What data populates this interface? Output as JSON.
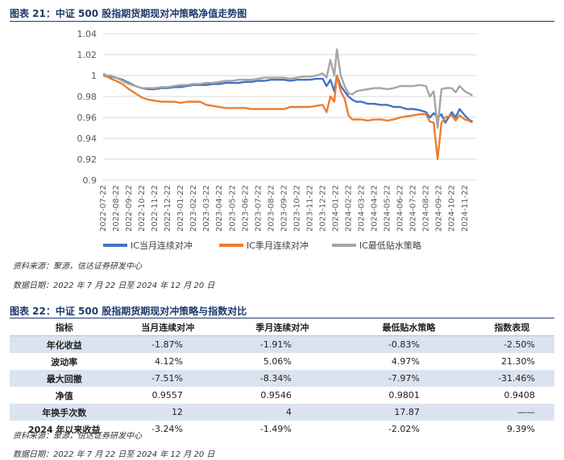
{
  "figure1": {
    "title": "图表 21：中证 500 股指期货期现对冲策略净值走势图",
    "source": "资料来源：聚源，信达证券研发中心",
    "date_range": "数据日期：2022 年 7 月 22 日至 2024 年 12 月 20 日"
  },
  "figure2": {
    "title": "图表 22：中证 500 股指期货期现对冲策略与指数对比",
    "source": "资料来源：聚源，信达证券研发中心",
    "date_range": "数据日期：2022 年 7 月 22 日至 2024 年 12 月 20 日"
  },
  "chart_data": {
    "type": "line",
    "title": "",
    "xlabel": "",
    "ylabel": "",
    "ylim": [
      0.9,
      1.04
    ],
    "yticks": [
      "0.9",
      "0.92",
      "0.94",
      "0.96",
      "0.98",
      "1",
      "1.02",
      "1.04"
    ],
    "ytick_values": [
      0.9,
      0.92,
      0.94,
      0.96,
      0.98,
      1.0,
      1.02,
      1.04
    ],
    "x_categories": [
      "2022-07-22",
      "2022-08-22",
      "2022-09-22",
      "2022-10-22",
      "2022-11-22",
      "2022-12-22",
      "2023-01-22",
      "2023-02-22",
      "2023-03-22",
      "2023-04-22",
      "2023-05-22",
      "2023-06-22",
      "2023-07-22",
      "2023-08-22",
      "2023-09-22",
      "2023-10-22",
      "2023-11-22",
      "2023-12-22",
      "2024-01-22",
      "2024-02-22",
      "2024-03-22",
      "2024-04-22",
      "2024-05-22",
      "2024-06-22",
      "2024-07-22",
      "2024-08-22",
      "2024-09-22",
      "2024-10-22",
      "2024-11-22"
    ],
    "grid": true,
    "legend_position": "bottom",
    "series": [
      {
        "name": "IC当月连续对冲",
        "color": "#4472c4",
        "x": [
          0,
          0.3,
          0.6,
          1,
          1.5,
          2,
          2.5,
          3,
          3.5,
          4,
          4.5,
          5,
          5.5,
          6,
          6.5,
          7,
          7.5,
          8,
          8.5,
          9,
          9.5,
          10,
          10.5,
          11,
          11.5,
          12,
          12.5,
          13,
          13.5,
          14,
          14.5,
          15,
          15.5,
          16,
          16.5,
          17,
          17.3,
          17.6,
          17.9,
          18.1,
          18.4,
          18.7,
          19,
          19.3,
          19.6,
          20,
          20.5,
          21,
          21.5,
          22,
          22.5,
          23,
          23.5,
          24,
          24.5,
          25,
          25.3,
          25.6,
          25.9,
          26.2,
          26.5,
          27,
          27.3,
          27.6,
          28,
          28.3,
          28.6
        ],
        "values": [
          1.0,
          1.0,
          0.999,
          0.998,
          0.996,
          0.993,
          0.99,
          0.988,
          0.987,
          0.987,
          0.988,
          0.988,
          0.989,
          0.989,
          0.99,
          0.991,
          0.991,
          0.991,
          0.992,
          0.992,
          0.993,
          0.993,
          0.993,
          0.994,
          0.994,
          0.995,
          0.995,
          0.996,
          0.996,
          0.996,
          0.995,
          0.996,
          0.996,
          0.996,
          0.997,
          0.997,
          0.99,
          0.996,
          0.985,
          1.0,
          0.99,
          0.985,
          0.98,
          0.977,
          0.975,
          0.975,
          0.973,
          0.973,
          0.972,
          0.972,
          0.97,
          0.97,
          0.968,
          0.968,
          0.967,
          0.965,
          0.96,
          0.964,
          0.96,
          0.963,
          0.955,
          0.965,
          0.96,
          0.968,
          0.962,
          0.958,
          0.956
        ]
      },
      {
        "name": "IC季月连续对冲",
        "color": "#ed7d31",
        "x": [
          0,
          0.3,
          0.6,
          1,
          1.5,
          2,
          2.5,
          3,
          3.5,
          4,
          4.5,
          5,
          5.5,
          6,
          6.5,
          7,
          7.5,
          8,
          8.5,
          9,
          9.5,
          10,
          10.5,
          11,
          11.5,
          12,
          12.5,
          13,
          13.5,
          14,
          14.5,
          15,
          15.5,
          16,
          16.5,
          17,
          17.3,
          17.6,
          17.9,
          18.1,
          18.4,
          18.7,
          19,
          19.3,
          19.6,
          20,
          20.5,
          21,
          21.5,
          22,
          22.5,
          23,
          23.5,
          24,
          24.5,
          25,
          25.3,
          25.6,
          25.9,
          26.2,
          26.5,
          27,
          27.3,
          27.6,
          28,
          28.3,
          28.6
        ],
        "values": [
          1.0,
          0.999,
          0.997,
          0.995,
          0.992,
          0.987,
          0.983,
          0.979,
          0.977,
          0.976,
          0.975,
          0.975,
          0.975,
          0.974,
          0.975,
          0.975,
          0.975,
          0.972,
          0.971,
          0.97,
          0.969,
          0.969,
          0.969,
          0.969,
          0.968,
          0.968,
          0.968,
          0.968,
          0.968,
          0.968,
          0.97,
          0.97,
          0.97,
          0.97,
          0.971,
          0.972,
          0.965,
          0.98,
          0.975,
          1.0,
          0.985,
          0.978,
          0.962,
          0.958,
          0.958,
          0.958,
          0.957,
          0.958,
          0.958,
          0.957,
          0.958,
          0.96,
          0.961,
          0.962,
          0.963,
          0.963,
          0.956,
          0.955,
          0.92,
          0.955,
          0.96,
          0.962,
          0.957,
          0.962,
          0.958,
          0.957,
          0.955
        ]
      },
      {
        "name": "IC最低贴水策略",
        "color": "#a5a5a5",
        "x": [
          0,
          0.3,
          0.6,
          1,
          1.5,
          2,
          2.5,
          3,
          3.5,
          4,
          4.5,
          5,
          5.5,
          6,
          6.5,
          7,
          7.5,
          8,
          8.5,
          9,
          9.5,
          10,
          10.5,
          11,
          11.5,
          12,
          12.5,
          13,
          13.5,
          14,
          14.5,
          15,
          15.5,
          16,
          16.5,
          17,
          17.3,
          17.6,
          17.9,
          18.1,
          18.4,
          18.7,
          19,
          19.3,
          19.6,
          20,
          20.5,
          21,
          21.5,
          22,
          22.5,
          23,
          23.5,
          24,
          24.5,
          25,
          25.3,
          25.6,
          25.9,
          26.2,
          26.5,
          27,
          27.3,
          27.6,
          28,
          28.3,
          28.6
        ],
        "values": [
          1.002,
          1.0,
          1.0,
          0.998,
          0.995,
          0.992,
          0.99,
          0.988,
          0.988,
          0.988,
          0.989,
          0.989,
          0.99,
          0.991,
          0.991,
          0.992,
          0.992,
          0.993,
          0.993,
          0.994,
          0.995,
          0.995,
          0.996,
          0.996,
          0.996,
          0.997,
          0.998,
          0.998,
          0.998,
          0.998,
          0.997,
          0.998,
          0.999,
          0.999,
          1.0,
          1.002,
          0.998,
          1.015,
          1.0,
          1.025,
          1.0,
          0.99,
          0.983,
          0.982,
          0.985,
          0.986,
          0.987,
          0.988,
          0.988,
          0.987,
          0.988,
          0.99,
          0.99,
          0.99,
          0.991,
          0.99,
          0.98,
          0.985,
          0.95,
          0.987,
          0.988,
          0.988,
          0.984,
          0.99,
          0.985,
          0.983,
          0.981
        ]
      }
    ]
  },
  "table": {
    "headers": [
      "指标",
      "当月连续对冲",
      "季月连续对冲",
      "最低贴水策略",
      "指数表现"
    ],
    "rows": [
      [
        "年化收益",
        "-1.87%",
        "-1.91%",
        "-0.83%",
        "-2.50%"
      ],
      [
        "波动率",
        "4.12%",
        "5.06%",
        "4.97%",
        "21.30%"
      ],
      [
        "最大回撤",
        "-7.51%",
        "-8.34%",
        "-7.97%",
        "-31.46%"
      ],
      [
        "净值",
        "0.9557",
        "0.9546",
        "0.9801",
        "0.9408"
      ],
      [
        "年换手次数",
        "12",
        "4",
        "17.87",
        "——"
      ],
      [
        "2024 年以来收益",
        "-3.24%",
        "-1.49%",
        "-2.02%",
        "9.39%"
      ]
    ]
  }
}
